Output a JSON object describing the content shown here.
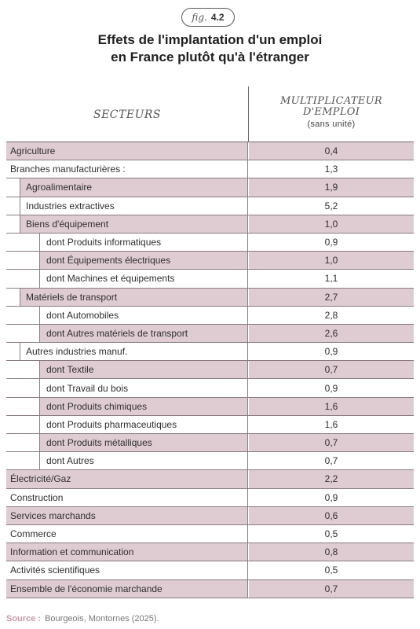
{
  "figure": {
    "word": "fig.",
    "number": "4.2"
  },
  "title": {
    "line1": "Effets de l'implantation d'un emploi",
    "line2": "en France plutôt qu'à l'étranger"
  },
  "header": {
    "col1": "SECTEURS",
    "col2_line1": "MULTIPLICATEUR",
    "col2_line2": "D'EMPLOI",
    "col2_unit": "(sans unité)"
  },
  "rows": [
    {
      "label": "Agriculture",
      "value": "0,4"
    },
    {
      "label": "Branches manufacturières :",
      "value": "1,3"
    },
    {
      "label": "Agroalimentaire",
      "value": "1,9"
    },
    {
      "label": "Industries extractives",
      "value": "5,2"
    },
    {
      "label": "Biens d'équipement",
      "value": "1,0"
    },
    {
      "label": "dont Produits informatiques",
      "value": "0,9"
    },
    {
      "label": "dont Équipements électriques",
      "value": "1,0"
    },
    {
      "label": "dont Machines et équipements",
      "value": "1,1"
    },
    {
      "label": "Matériels de transport",
      "value": "2,7"
    },
    {
      "label": "dont Automobiles",
      "value": "2,8"
    },
    {
      "label": "dont Autres matériels de transport",
      "value": "2,6"
    },
    {
      "label": "Autres industries manuf.",
      "value": "0,9"
    },
    {
      "label": "dont Textile",
      "value": "0,7"
    },
    {
      "label": "dont Travail du bois",
      "value": "0,9"
    },
    {
      "label": "dont Produits chimiques",
      "value": "1,6"
    },
    {
      "label": "dont Produits pharmaceutiques",
      "value": "1,6"
    },
    {
      "label": "dont Produits métalliques",
      "value": "0,7"
    },
    {
      "label": "dont Autres",
      "value": "0,7"
    },
    {
      "label": "Électricité/Gaz",
      "value": "2,2"
    },
    {
      "label": "Construction",
      "value": "0,9"
    },
    {
      "label": "Services marchands",
      "value": "0,6"
    },
    {
      "label": "Commerce",
      "value": "0,5"
    },
    {
      "label": "Information et communication",
      "value": "0,8"
    },
    {
      "label": "Activités scientifiques",
      "value": "0,5"
    },
    {
      "label": "Ensemble de l'économie marchande",
      "value": "0,7"
    }
  ],
  "source": {
    "label": "Source :",
    "text": "Bourgeois, Montornes (2025)."
  },
  "colors": {
    "shaded_row": "#dfccd3",
    "source_label": "#c99aa8"
  }
}
